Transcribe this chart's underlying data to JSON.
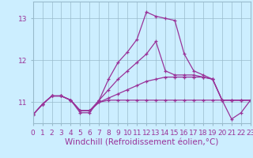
{
  "x": [
    0,
    1,
    2,
    3,
    4,
    5,
    6,
    7,
    8,
    9,
    10,
    11,
    12,
    13,
    14,
    15,
    16,
    17,
    18,
    19,
    20,
    21,
    22,
    23
  ],
  "line1": [
    10.7,
    10.95,
    11.15,
    11.15,
    11.05,
    10.8,
    10.8,
    11.0,
    11.05,
    11.05,
    11.05,
    11.05,
    11.05,
    11.05,
    11.05,
    11.05,
    11.05,
    11.05,
    11.05,
    11.05,
    11.05,
    11.05,
    11.05,
    11.05
  ],
  "line2": [
    10.7,
    10.95,
    11.15,
    11.15,
    11.05,
    10.8,
    10.8,
    11.0,
    11.1,
    11.2,
    11.3,
    11.4,
    11.5,
    11.55,
    11.6,
    11.6,
    11.6,
    11.6,
    11.6,
    11.55,
    11.05,
    11.05,
    11.05,
    11.05
  ],
  "line3": [
    10.7,
    10.95,
    11.15,
    11.15,
    11.05,
    10.8,
    10.8,
    11.05,
    11.3,
    11.55,
    11.75,
    11.95,
    12.15,
    12.45,
    11.75,
    11.65,
    11.65,
    11.65,
    11.6,
    11.55,
    11.05,
    11.05,
    11.05,
    11.05
  ],
  "line4": [
    10.7,
    10.95,
    11.15,
    11.15,
    11.05,
    10.75,
    10.75,
    11.05,
    11.55,
    11.95,
    12.2,
    12.5,
    13.15,
    13.05,
    13.0,
    12.95,
    12.15,
    11.75,
    11.65,
    11.55,
    11.05,
    10.6,
    10.75,
    11.05
  ],
  "color": "#993399",
  "bgcolor": "#cceeff",
  "grid_color": "#99bbcc",
  "xlabel": "Windchill (Refroidissement éolien,°C)",
  "ylim": [
    10.5,
    13.4
  ],
  "yticks": [
    11,
    12,
    13
  ],
  "xlim": [
    0,
    23
  ],
  "tick_fontsize": 6.5,
  "label_fontsize": 7.5
}
